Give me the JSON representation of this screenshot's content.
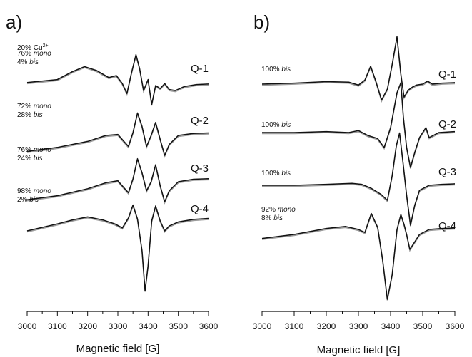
{
  "chart_data": [
    {
      "type": "line",
      "panel": "a)",
      "xlabel": "Magnetic field [G]",
      "xlim": [
        3000,
        3600
      ],
      "x_ticks": [
        "3000",
        "3100",
        "3200",
        "3300",
        "3400",
        "3500",
        "3600"
      ],
      "grid": false,
      "series": [
        {
          "name": "Q-1",
          "composition": [
            {
              "pct": "20%",
              "species": "Cu",
              "sup": "2+"
            },
            {
              "pct": "76%",
              "species": "mono"
            },
            {
              "pct": "4%",
              "species": "bis"
            }
          ],
          "x": [
            3000,
            3100,
            3150,
            3190,
            3230,
            3270,
            3295,
            3315,
            3330,
            3345,
            3360,
            3372,
            3385,
            3400,
            3412,
            3425,
            3440,
            3455,
            3470,
            3490,
            3520,
            3560,
            3600
          ],
          "y": [
            0.06,
            0.12,
            0.28,
            0.38,
            0.3,
            0.16,
            0.2,
            0.04,
            -0.16,
            0.25,
            0.62,
            0.34,
            -0.1,
            0.12,
            -0.38,
            0.0,
            -0.06,
            0.04,
            -0.08,
            -0.1,
            -0.02,
            0.02,
            0.03
          ]
        },
        {
          "name": "Q-2",
          "composition": [
            {
              "pct": "72%",
              "species": "mono"
            },
            {
              "pct": "28%",
              "species": "bis"
            }
          ],
          "x": [
            3000,
            3100,
            3200,
            3260,
            3300,
            3320,
            3335,
            3350,
            3365,
            3380,
            3395,
            3410,
            3425,
            3440,
            3455,
            3470,
            3500,
            3550,
            3600
          ],
          "y": [
            -0.32,
            -0.24,
            -0.12,
            0.0,
            0.02,
            -0.12,
            -0.22,
            0.06,
            0.45,
            0.18,
            -0.22,
            0.0,
            0.26,
            -0.08,
            -0.4,
            -0.18,
            0.0,
            0.04,
            0.05
          ]
        },
        {
          "name": "Q-3",
          "composition": [
            {
              "pct": "76%",
              "species": "mono"
            },
            {
              "pct": "24%",
              "species": "bis"
            }
          ],
          "x": [
            3000,
            3100,
            3200,
            3260,
            3300,
            3320,
            3335,
            3350,
            3365,
            3380,
            3395,
            3410,
            3425,
            3440,
            3455,
            3470,
            3500,
            3550,
            3600
          ],
          "y": [
            -0.36,
            -0.28,
            -0.14,
            -0.02,
            0.02,
            -0.12,
            -0.22,
            0.06,
            0.46,
            0.18,
            -0.18,
            0.0,
            0.34,
            -0.08,
            -0.4,
            -0.18,
            0.0,
            0.05,
            0.06
          ]
        },
        {
          "name": "Q-4",
          "composition": [
            {
              "pct": "98%",
              "species": "mono"
            },
            {
              "pct": "2%",
              "species": "bis"
            }
          ],
          "x": [
            3000,
            3100,
            3150,
            3200,
            3250,
            3290,
            3315,
            3335,
            3350,
            3365,
            3380,
            3390,
            3400,
            3412,
            3425,
            3440,
            3455,
            3470,
            3500,
            3550,
            3600
          ],
          "y": [
            -0.2,
            -0.06,
            0.02,
            0.08,
            0.02,
            -0.06,
            -0.14,
            0.06,
            0.32,
            0.04,
            -0.6,
            -1.4,
            -0.9,
            0.0,
            0.3,
            0.0,
            -0.2,
            -0.1,
            -0.02,
            0.03,
            0.05
          ]
        }
      ]
    },
    {
      "type": "line",
      "panel": "b)",
      "xlabel": "Magnetic field [G]",
      "xlim": [
        3000,
        3600
      ],
      "x_ticks": [
        "3000",
        "3100",
        "3200",
        "3300",
        "3400",
        "3500",
        "3600"
      ],
      "grid": false,
      "series": [
        {
          "name": "Q-1",
          "composition": [
            {
              "pct": "100%",
              "species": "bis"
            }
          ],
          "x": [
            3000,
            3100,
            3200,
            3270,
            3300,
            3320,
            3338,
            3355,
            3372,
            3390,
            3405,
            3420,
            3432,
            3442,
            3455,
            3468,
            3480,
            3500,
            3515,
            3530,
            3560,
            3600
          ],
          "y": [
            0.0,
            0.02,
            0.05,
            0.04,
            -0.02,
            0.08,
            0.36,
            0.04,
            -0.32,
            -0.1,
            0.4,
            0.95,
            0.2,
            -0.26,
            -0.12,
            -0.06,
            -0.02,
            0.0,
            0.06,
            0.0,
            0.02,
            0.03
          ]
        },
        {
          "name": "Q-2",
          "composition": [
            {
              "pct": "100%",
              "species": "bis"
            }
          ],
          "x": [
            3000,
            3100,
            3200,
            3270,
            3300,
            3330,
            3360,
            3380,
            3400,
            3420,
            3432,
            3440,
            3450,
            3462,
            3475,
            3490,
            3510,
            3520,
            3550,
            3600
          ],
          "y": [
            0.0,
            0.0,
            0.02,
            0.0,
            0.04,
            -0.06,
            -0.12,
            -0.3,
            0.1,
            0.8,
            1.0,
            0.3,
            -0.3,
            -0.7,
            -0.4,
            -0.1,
            0.1,
            -0.1,
            0.0,
            0.02
          ]
        },
        {
          "name": "Q-3",
          "composition": [
            {
              "pct": "100%",
              "species": "bis"
            }
          ],
          "x": [
            3000,
            3100,
            3200,
            3280,
            3310,
            3340,
            3370,
            3390,
            3405,
            3418,
            3428,
            3438,
            3450,
            3462,
            3475,
            3490,
            3520,
            3560,
            3600
          ],
          "y": [
            0.0,
            0.0,
            0.02,
            0.04,
            0.02,
            -0.06,
            -0.18,
            -0.3,
            0.2,
            0.8,
            1.05,
            0.5,
            -0.2,
            -0.8,
            -0.4,
            -0.1,
            0.0,
            0.02,
            0.03
          ]
        },
        {
          "name": "Q-4",
          "composition": [
            {
              "pct": "92%",
              "species": "mono"
            },
            {
              "pct": "8%",
              "species": "bis"
            }
          ],
          "x": [
            3000,
            3100,
            3200,
            3260,
            3300,
            3320,
            3340,
            3360,
            3375,
            3390,
            3405,
            3420,
            3432,
            3442,
            3450,
            3460,
            3470,
            3490,
            3520,
            3560,
            3600
          ],
          "y": [
            -0.18,
            -0.1,
            0.02,
            0.06,
            0.0,
            -0.06,
            0.32,
            0.04,
            -0.6,
            -1.4,
            -0.9,
            0.0,
            0.3,
            0.1,
            -0.1,
            -0.4,
            -0.3,
            -0.1,
            0.0,
            0.02,
            0.03
          ]
        }
      ]
    }
  ]
}
